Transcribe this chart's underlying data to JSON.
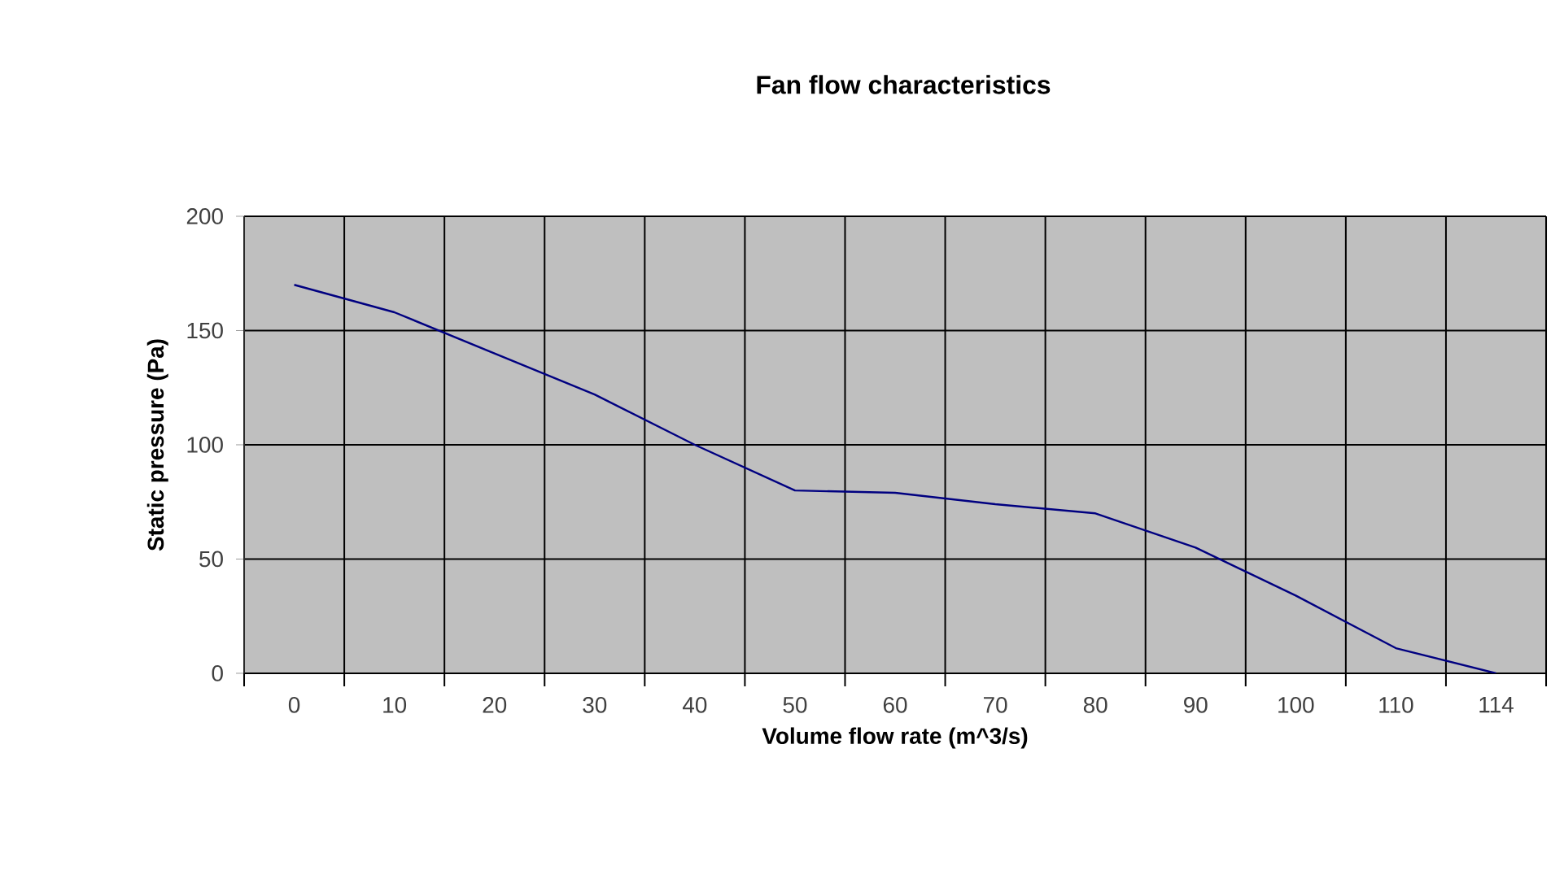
{
  "chart_data": {
    "type": "line",
    "title": "Fan flow characteristics",
    "xlabel": "Volume flow rate (m^3/s)",
    "ylabel": "Static pressure  (Pa)",
    "categories": [
      "0",
      "10",
      "20",
      "30",
      "40",
      "50",
      "60",
      "70",
      "80",
      "90",
      "100",
      "110",
      "114"
    ],
    "values": [
      170,
      158,
      140,
      122,
      100,
      80,
      79,
      74,
      70,
      55,
      34,
      11,
      0
    ],
    "color": "#000080",
    "ylim": [
      0,
      200
    ],
    "yticks": [
      0,
      50,
      100,
      150,
      200
    ],
    "grid": true,
    "marker": "none",
    "line_style": "solid"
  }
}
